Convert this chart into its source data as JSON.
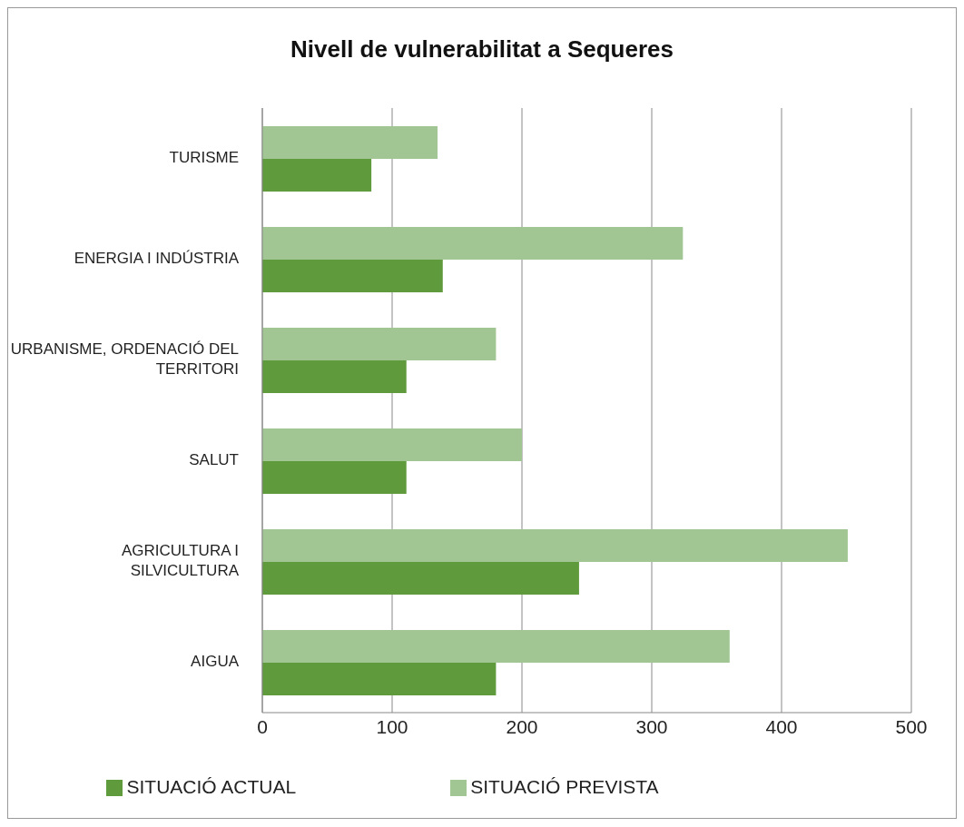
{
  "chart_data": {
    "type": "bar",
    "orientation": "horizontal",
    "title": "Nivell de vulnerabilitat a Sequeres",
    "categories": [
      "TURISME",
      "ENERGIA I INDÚSTRIA",
      "URBANISME, ORDENACIÓ DEL TERRITORI",
      "SALUT",
      "AGRICULTURA I SILVICULTURA",
      "AIGUA"
    ],
    "series": [
      {
        "name": "SITUACIÓ PREVISTA",
        "color": "#a2c693",
        "values": [
          135,
          324,
          180,
          200,
          451,
          360
        ]
      },
      {
        "name": "SITUACIÓ ACTUAL",
        "color": "#5f9a3c",
        "values": [
          84,
          139,
          111,
          111,
          244,
          180
        ]
      }
    ],
    "xlim": [
      0,
      500
    ],
    "xticks": [
      0,
      100,
      200,
      300,
      400,
      500
    ],
    "grid": "x",
    "legend": "bottom"
  }
}
